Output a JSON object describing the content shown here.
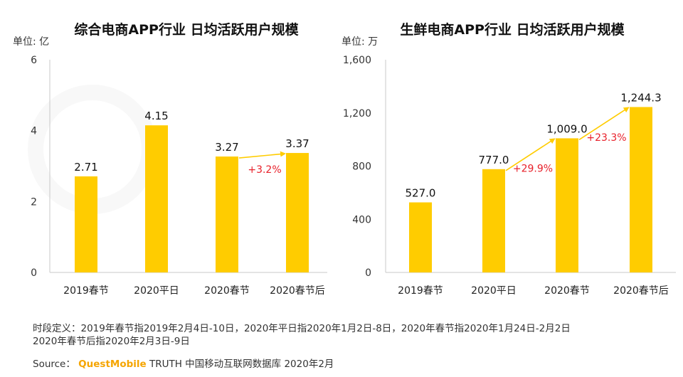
{
  "chart_data": [
    {
      "type": "bar",
      "title": "综合电商APP行业 日均活跃用户规模",
      "unit_label": "单位: 亿",
      "categories": [
        "2019春节",
        "2020平日",
        "2020春节",
        "2020春节后"
      ],
      "values": [
        2.71,
        4.15,
        3.27,
        3.37
      ],
      "value_labels": [
        "2.71",
        "4.15",
        "3.27",
        "3.37"
      ],
      "ylim": [
        0,
        6
      ],
      "yticks": [
        0,
        2,
        4,
        6
      ],
      "ytick_labels": [
        "0",
        "2",
        "4",
        "6"
      ],
      "grid": false,
      "annotations": [
        {
          "from": 2,
          "to": 3,
          "label": "+3.2%"
        }
      ]
    },
    {
      "type": "bar",
      "title": "生鲜电商APP行业 日均活跃用户规模",
      "unit_label": "单位: 万",
      "categories": [
        "2019春节",
        "2020平日",
        "2020春节",
        "2020春节后"
      ],
      "values": [
        527.0,
        777.0,
        1009.0,
        1244.3
      ],
      "value_labels": [
        "527.0",
        "777.0",
        "1,009.0",
        "1,244.3"
      ],
      "ylim": [
        0,
        1600
      ],
      "yticks": [
        0,
        400,
        800,
        1200,
        1600
      ],
      "ytick_labels": [
        "0",
        "400",
        "800",
        "1,200",
        "1,600"
      ],
      "grid": false,
      "annotations": [
        {
          "from": 1,
          "to": 2,
          "label": "+29.9%"
        },
        {
          "from": 2,
          "to": 3,
          "label": "+23.3%"
        }
      ]
    }
  ],
  "colors": {
    "bar": "#ffcc00",
    "arrow": "#ffcc00",
    "annotation_text": "#e8202a",
    "brand": "#f5a500"
  },
  "footnote": {
    "line1": "时段定义：2019年春节指2019年2月4日-10日，2020年平日指2020年1月2日-8日，2020年春节指2020年1月24日-2月2日",
    "line2": "2020年春节后指2020年2月3日-9日"
  },
  "source": {
    "label": "Source：",
    "brand": "QuestMobile",
    "text": "TRUTH 中国移动互联网数据库 2020年2月"
  }
}
